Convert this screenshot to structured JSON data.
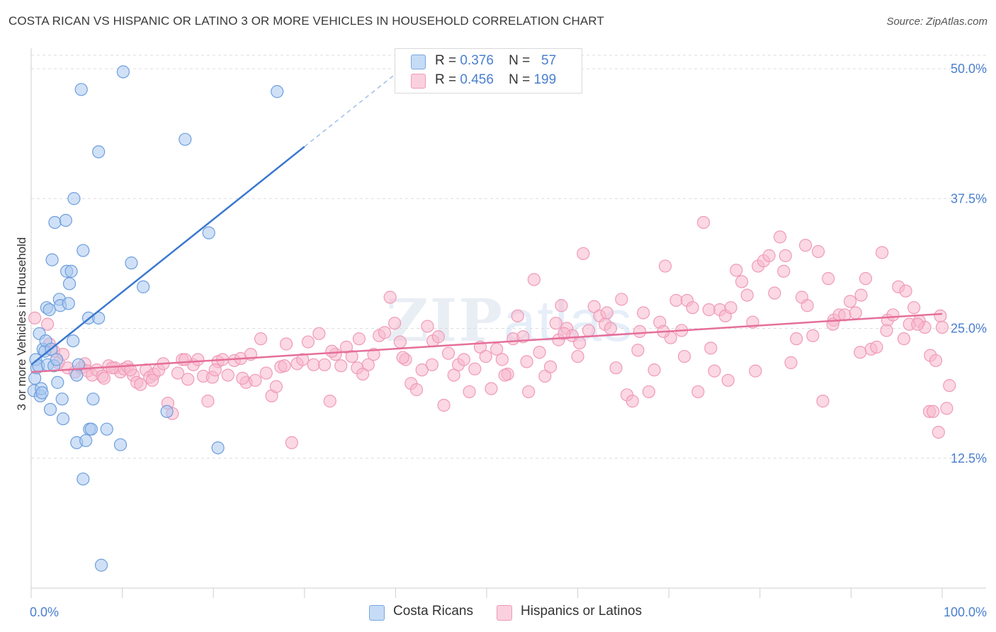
{
  "title": "COSTA RICAN VS HISPANIC OR LATINO 3 OR MORE VEHICLES IN HOUSEHOLD CORRELATION CHART",
  "source": "Source: ZipAtlas.com",
  "watermark": {
    "zip": "ZIP",
    "atlas": "atlas"
  },
  "legend": {
    "rows": [
      {
        "r_label": "R =",
        "r_value": "0.376",
        "n_label": "N =",
        "n_value": "57",
        "color": "#a9c8f0"
      },
      {
        "r_label": "R =",
        "r_value": "0.456",
        "n_label": "N =",
        "n_value": "199",
        "color": "#f7b8cc"
      }
    ]
  },
  "bottom_legend": [
    {
      "label": "Costa Ricans",
      "color": "#a9c8f0"
    },
    {
      "label": "Hispanics or Latinos",
      "color": "#f7b8cc"
    }
  ],
  "chart_data": {
    "type": "scatter",
    "ylabel": "3 or more Vehicles in Household",
    "xlim": [
      0,
      100
    ],
    "ylim": [
      0,
      52
    ],
    "x_tick_labels": [
      "0.0%",
      "100.0%"
    ],
    "y_ticks": [
      12.5,
      25.0,
      37.5,
      50.0
    ],
    "y_tick_labels": [
      "12.5%",
      "25.0%",
      "37.5%",
      "50.0%"
    ],
    "grid": true,
    "series": [
      {
        "name": "Costa Ricans",
        "color": "#4a7fcf",
        "fill": "#a9c8f0",
        "trend": {
          "x0": 0.0,
          "y0": 21.5,
          "x1": 30.0,
          "y1": 42.5,
          "dashed_to_x": 40.0,
          "dashed_to_y": 49.5
        },
        "points": [
          [
            0.3,
            19.0
          ],
          [
            0.4,
            20.2
          ],
          [
            0.6,
            21.2
          ],
          [
            0.5,
            22.0
          ],
          [
            0.8,
            21.4
          ],
          [
            0.9,
            24.5
          ],
          [
            1.0,
            18.5
          ],
          [
            1.1,
            19.2
          ],
          [
            1.2,
            18.8
          ],
          [
            1.3,
            23.0
          ],
          [
            1.5,
            22.8
          ],
          [
            1.6,
            23.8
          ],
          [
            1.8,
            21.5
          ],
          [
            1.7,
            27.0
          ],
          [
            2.0,
            26.8
          ],
          [
            2.1,
            17.2
          ],
          [
            2.2,
            23.0
          ],
          [
            2.3,
            31.6
          ],
          [
            2.5,
            21.4
          ],
          [
            2.6,
            35.2
          ],
          [
            2.8,
            22.0
          ],
          [
            2.9,
            19.8
          ],
          [
            3.1,
            27.8
          ],
          [
            3.2,
            27.2
          ],
          [
            3.4,
            18.2
          ],
          [
            3.5,
            16.3
          ],
          [
            3.8,
            35.4
          ],
          [
            3.9,
            30.5
          ],
          [
            4.1,
            27.4
          ],
          [
            4.2,
            29.3
          ],
          [
            4.4,
            30.5
          ],
          [
            4.7,
            37.5
          ],
          [
            4.6,
            23.8
          ],
          [
            5.0,
            14.0
          ],
          [
            5.2,
            21.5
          ],
          [
            5.0,
            20.5
          ],
          [
            5.5,
            48.0
          ],
          [
            5.7,
            32.5
          ],
          [
            5.7,
            10.5
          ],
          [
            6.0,
            14.2
          ],
          [
            6.3,
            26.0
          ],
          [
            6.4,
            15.3
          ],
          [
            6.6,
            15.3
          ],
          [
            6.8,
            18.2
          ],
          [
            7.4,
            26.0
          ],
          [
            7.4,
            42.0
          ],
          [
            7.7,
            2.2
          ],
          [
            8.3,
            15.3
          ],
          [
            9.8,
            13.8
          ],
          [
            10.1,
            49.7
          ],
          [
            11.0,
            31.3
          ],
          [
            12.3,
            29.0
          ],
          [
            14.9,
            17.0
          ],
          [
            16.9,
            43.2
          ],
          [
            19.5,
            34.2
          ],
          [
            27.0,
            47.8
          ],
          [
            20.5,
            13.5
          ]
        ]
      },
      {
        "name": "Hispanics or Latinos",
        "color": "#e56f9a",
        "fill": "#f7b8cc",
        "trend": {
          "x0": 0.0,
          "y0": 20.8,
          "x1": 100.0,
          "y1": 26.4
        },
        "points": [
          [
            0.4,
            26.0
          ],
          [
            1.8,
            25.4
          ],
          [
            2.0,
            23.5
          ],
          [
            2.5,
            22.8
          ],
          [
            3.0,
            21.7
          ],
          [
            3.5,
            22.5
          ],
          [
            4.0,
            21.2
          ],
          [
            4.8,
            20.8
          ],
          [
            5.5,
            21.2
          ],
          [
            5.9,
            21.6
          ],
          [
            6.2,
            20.9
          ],
          [
            6.7,
            20.5
          ],
          [
            7.2,
            21.0
          ],
          [
            7.8,
            20.4
          ],
          [
            8.0,
            20.2
          ],
          [
            8.5,
            21.4
          ],
          [
            9.2,
            21.2
          ],
          [
            9.8,
            20.8
          ],
          [
            10.2,
            21.1
          ],
          [
            10.6,
            21.3
          ],
          [
            11.2,
            20.5
          ],
          [
            11.6,
            19.8
          ],
          [
            12.0,
            19.6
          ],
          [
            12.6,
            21.0
          ],
          [
            13.0,
            20.3
          ],
          [
            13.5,
            20.6
          ],
          [
            14.0,
            21.0
          ],
          [
            14.5,
            21.6
          ],
          [
            15.0,
            17.8
          ],
          [
            15.5,
            16.8
          ],
          [
            16.1,
            20.7
          ],
          [
            16.6,
            22.0
          ],
          [
            17.2,
            20.1
          ],
          [
            17.8,
            21.5
          ],
          [
            18.3,
            22.0
          ],
          [
            18.9,
            20.4
          ],
          [
            19.4,
            18.0
          ],
          [
            19.9,
            20.3
          ],
          [
            20.5,
            21.8
          ],
          [
            21.0,
            22.0
          ],
          [
            21.6,
            20.5
          ],
          [
            22.3,
            21.9
          ],
          [
            23.0,
            22.1
          ],
          [
            23.6,
            19.8
          ],
          [
            24.1,
            22.5
          ],
          [
            24.6,
            20.0
          ],
          [
            25.2,
            24.0
          ],
          [
            25.8,
            20.7
          ],
          [
            26.4,
            18.5
          ],
          [
            26.9,
            19.4
          ],
          [
            27.4,
            21.3
          ],
          [
            28.0,
            23.5
          ],
          [
            28.6,
            14.0
          ],
          [
            29.2,
            21.6
          ],
          [
            29.8,
            22.0
          ],
          [
            30.4,
            23.7
          ],
          [
            31.0,
            21.5
          ],
          [
            31.6,
            24.5
          ],
          [
            32.2,
            21.5
          ],
          [
            32.8,
            18.0
          ],
          [
            33.4,
            22.5
          ],
          [
            34.0,
            21.4
          ],
          [
            34.6,
            23.2
          ],
          [
            35.2,
            22.3
          ],
          [
            35.8,
            21.2
          ],
          [
            36.4,
            20.6
          ],
          [
            37.0,
            21.5
          ],
          [
            37.6,
            22.5
          ],
          [
            38.2,
            24.3
          ],
          [
            38.8,
            24.6
          ],
          [
            39.4,
            28.0
          ],
          [
            39.9,
            25.5
          ],
          [
            40.5,
            23.7
          ],
          [
            41.1,
            22.0
          ],
          [
            41.7,
            19.7
          ],
          [
            42.3,
            19.1
          ],
          [
            42.9,
            21.0
          ],
          [
            43.5,
            25.2
          ],
          [
            44.1,
            23.8
          ],
          [
            44.7,
            24.2
          ],
          [
            45.3,
            17.6
          ],
          [
            45.8,
            22.6
          ],
          [
            46.4,
            20.5
          ],
          [
            46.9,
            21.5
          ],
          [
            47.5,
            22.0
          ],
          [
            48.1,
            18.9
          ],
          [
            48.7,
            21.1
          ],
          [
            49.3,
            23.2
          ],
          [
            49.9,
            22.3
          ],
          [
            50.5,
            19.2
          ],
          [
            51.1,
            23.0
          ],
          [
            51.7,
            22.0
          ],
          [
            52.3,
            20.6
          ],
          [
            52.9,
            24.0
          ],
          [
            53.4,
            26.2
          ],
          [
            54.0,
            24.2
          ],
          [
            54.6,
            18.9
          ],
          [
            55.2,
            29.7
          ],
          [
            55.8,
            22.7
          ],
          [
            56.4,
            20.4
          ],
          [
            57.0,
            21.3
          ],
          [
            57.6,
            25.5
          ],
          [
            58.2,
            27.2
          ],
          [
            58.8,
            25.0
          ],
          [
            59.4,
            24.3
          ],
          [
            60.0,
            22.3
          ],
          [
            60.6,
            32.2
          ],
          [
            61.2,
            24.8
          ],
          [
            61.8,
            27.1
          ],
          [
            62.4,
            26.2
          ],
          [
            63.0,
            25.4
          ],
          [
            63.6,
            25.0
          ],
          [
            64.2,
            21.2
          ],
          [
            64.8,
            27.8
          ],
          [
            65.4,
            18.6
          ],
          [
            66.0,
            18.0
          ],
          [
            66.6,
            22.9
          ],
          [
            67.2,
            26.5
          ],
          [
            67.8,
            18.9
          ],
          [
            68.4,
            21.0
          ],
          [
            69.0,
            25.6
          ],
          [
            69.6,
            31.0
          ],
          [
            70.2,
            24.1
          ],
          [
            70.8,
            27.7
          ],
          [
            71.4,
            24.8
          ],
          [
            72.0,
            27.7
          ],
          [
            72.6,
            27.0
          ],
          [
            73.2,
            18.9
          ],
          [
            73.8,
            35.2
          ],
          [
            74.4,
            26.8
          ],
          [
            75.0,
            20.9
          ],
          [
            75.6,
            26.8
          ],
          [
            76.2,
            26.2
          ],
          [
            76.8,
            27.0
          ],
          [
            77.4,
            30.6
          ],
          [
            78.0,
            29.5
          ],
          [
            78.6,
            28.2
          ],
          [
            79.2,
            25.6
          ],
          [
            79.8,
            31.0
          ],
          [
            80.4,
            31.5
          ],
          [
            81.0,
            32.0
          ],
          [
            81.6,
            28.4
          ],
          [
            82.2,
            33.8
          ],
          [
            82.8,
            32.0
          ],
          [
            83.4,
            21.7
          ],
          [
            84.0,
            24.0
          ],
          [
            84.6,
            28.0
          ],
          [
            85.2,
            27.2
          ],
          [
            85.8,
            24.3
          ],
          [
            86.4,
            32.4
          ],
          [
            86.9,
            18.0
          ],
          [
            87.5,
            29.8
          ],
          [
            88.1,
            25.8
          ],
          [
            88.7,
            26.3
          ],
          [
            89.3,
            26.3
          ],
          [
            89.9,
            27.6
          ],
          [
            90.5,
            26.5
          ],
          [
            91.1,
            28.2
          ],
          [
            91.6,
            29.8
          ],
          [
            92.2,
            23.0
          ],
          [
            92.8,
            23.2
          ],
          [
            93.4,
            32.3
          ],
          [
            94.0,
            25.8
          ],
          [
            94.6,
            26.3
          ],
          [
            95.2,
            29.0
          ],
          [
            95.8,
            24.0
          ],
          [
            96.4,
            25.4
          ],
          [
            96.9,
            27.0
          ],
          [
            97.5,
            25.7
          ],
          [
            98.1,
            25.1
          ],
          [
            98.7,
            22.4
          ],
          [
            99.3,
            21.9
          ],
          [
            99.8,
            26.2
          ],
          [
            96.0,
            28.6
          ],
          [
            93.9,
            24.8
          ],
          [
            97.3,
            25.4
          ],
          [
            98.6,
            17.0
          ],
          [
            99.0,
            17.0
          ],
          [
            99.6,
            15.0
          ],
          [
            100.0,
            25.1
          ],
          [
            100.5,
            17.3
          ],
          [
            100.8,
            19.5
          ],
          [
            52.0,
            20.5
          ],
          [
            54.4,
            21.8
          ],
          [
            57.9,
            23.9
          ],
          [
            60.2,
            23.6
          ],
          [
            63.2,
            26.5
          ],
          [
            66.8,
            24.7
          ],
          [
            69.4,
            24.7
          ],
          [
            71.7,
            22.3
          ],
          [
            74.6,
            23.1
          ],
          [
            79.5,
            20.9
          ],
          [
            82.6,
            30.5
          ],
          [
            85.0,
            33.0
          ],
          [
            88.0,
            25.4
          ],
          [
            91.0,
            22.7
          ],
          [
            76.5,
            20.0
          ],
          [
            58.5,
            24.5
          ],
          [
            44.0,
            21.5
          ],
          [
            40.8,
            22.2
          ],
          [
            36.0,
            24.0
          ],
          [
            33.0,
            22.8
          ],
          [
            27.8,
            21.4
          ],
          [
            23.2,
            20.2
          ],
          [
            20.2,
            21.0
          ],
          [
            16.9,
            22.0
          ],
          [
            13.3,
            20.0
          ],
          [
            10.9,
            21.0
          ],
          [
            8.9,
            21.2
          ]
        ]
      }
    ]
  }
}
